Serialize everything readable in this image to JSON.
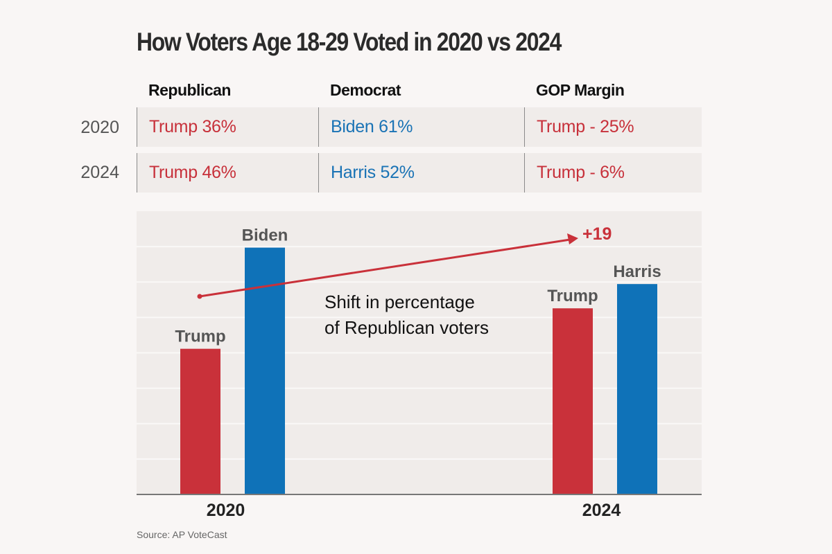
{
  "title": "How Voters Age 18-29 Voted in 2020 vs 2024",
  "table": {
    "headers": [
      "Republican",
      "Democrat",
      "GOP Margin"
    ],
    "rows": [
      {
        "year": "2020",
        "republican": "Trump 36%",
        "democrat": "Biden 61%",
        "margin": "Trump - 25%"
      },
      {
        "year": "2024",
        "republican": "Trump 46%",
        "democrat": "Harris 52%",
        "margin": "Trump - 6%"
      }
    ]
  },
  "colors": {
    "republican": "#c9313a",
    "democrat": "#0f72b8",
    "grid": "#faf8f7",
    "plot_bg": "#f0ecea"
  },
  "chart_data": {
    "type": "bar",
    "categories": [
      "2020",
      "2024"
    ],
    "series": [
      {
        "party": "Republican",
        "labels": [
          "Trump",
          "Trump"
        ],
        "values": [
          36,
          46
        ]
      },
      {
        "party": "Democrat",
        "labels": [
          "Biden",
          "Harris"
        ],
        "values": [
          61,
          52
        ]
      }
    ],
    "ylim": [
      0,
      70
    ],
    "grid": true,
    "annotation": {
      "text_line1": "Shift in percentage",
      "text_line2": "of Republican voters",
      "shift_label": "+19"
    }
  },
  "source": "Source: AP VoteCast"
}
